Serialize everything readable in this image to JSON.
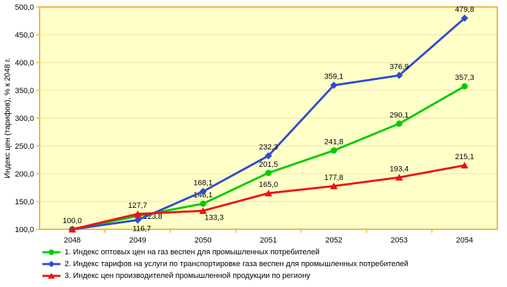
{
  "page": {
    "background": "#FFFFFF"
  },
  "chart_data": {
    "type": "line",
    "title": "",
    "xlabel": "",
    "ylabel": "Индекс цен (тарифов), % к 2048 г.",
    "categories": [
      "2048",
      "2049",
      "2050",
      "2051",
      "2052",
      "2053",
      "2054"
    ],
    "ylim": [
      100,
      500
    ],
    "ytick_step": 50,
    "ytick_labels": [
      "100,0",
      "150,0",
      "200,0",
      "250,0",
      "300,0",
      "350,0",
      "400,0",
      "450,0",
      "500,0"
    ],
    "grid": "horizontal-only",
    "legend_position": "bottom-left",
    "plot_bg": "#FFFFC8",
    "grid_color": "#F2DCA6",
    "border_color": "#F2B63C",
    "tick_color": "#F2B63C",
    "text_color": "#000000",
    "series": [
      {
        "name": "1. Индекс оптовых цен на газ веспен для промышленных потребителей",
        "color": "#00CC00",
        "marker": "circle",
        "values": [
          100.0,
          123.8,
          146.1,
          201.5,
          241.8,
          290.1,
          357.3
        ],
        "labels": [
          "",
          "123,8",
          "146,1",
          "201,5",
          "241,8",
          "290,1",
          "357,3"
        ],
        "label_pos": [
          "none",
          "right",
          "above",
          "above",
          "above",
          "above",
          "above"
        ]
      },
      {
        "name": "2. Индекс тарифов на услуги по транспортировке газа веспен для промышленных потребителей",
        "color": "#2E4BD0",
        "marker": "diamond",
        "values": [
          100.0,
          116.7,
          168.1,
          232.3,
          359.1,
          376.9,
          479.8
        ],
        "labels": [
          "",
          "116,7",
          "168,1",
          "232,3",
          "359,1",
          "376,9",
          "479,8"
        ],
        "label_pos": [
          "none",
          "below",
          "above",
          "above",
          "above",
          "above",
          "above"
        ]
      },
      {
        "name": "3. Индекс цен производителей промышленной продукции по региону",
        "color": "#EE1111",
        "marker": "triangle",
        "values": [
          100.0,
          127.7,
          133.3,
          165.0,
          177.8,
          193.4,
          215.1
        ],
        "labels": [
          "100,0",
          "127,7",
          "133,3",
          "165,0",
          "177,8",
          "193,4",
          "215,1"
        ],
        "label_pos": [
          "above",
          "above",
          "below-right",
          "above",
          "above",
          "above",
          "above"
        ]
      }
    ]
  }
}
